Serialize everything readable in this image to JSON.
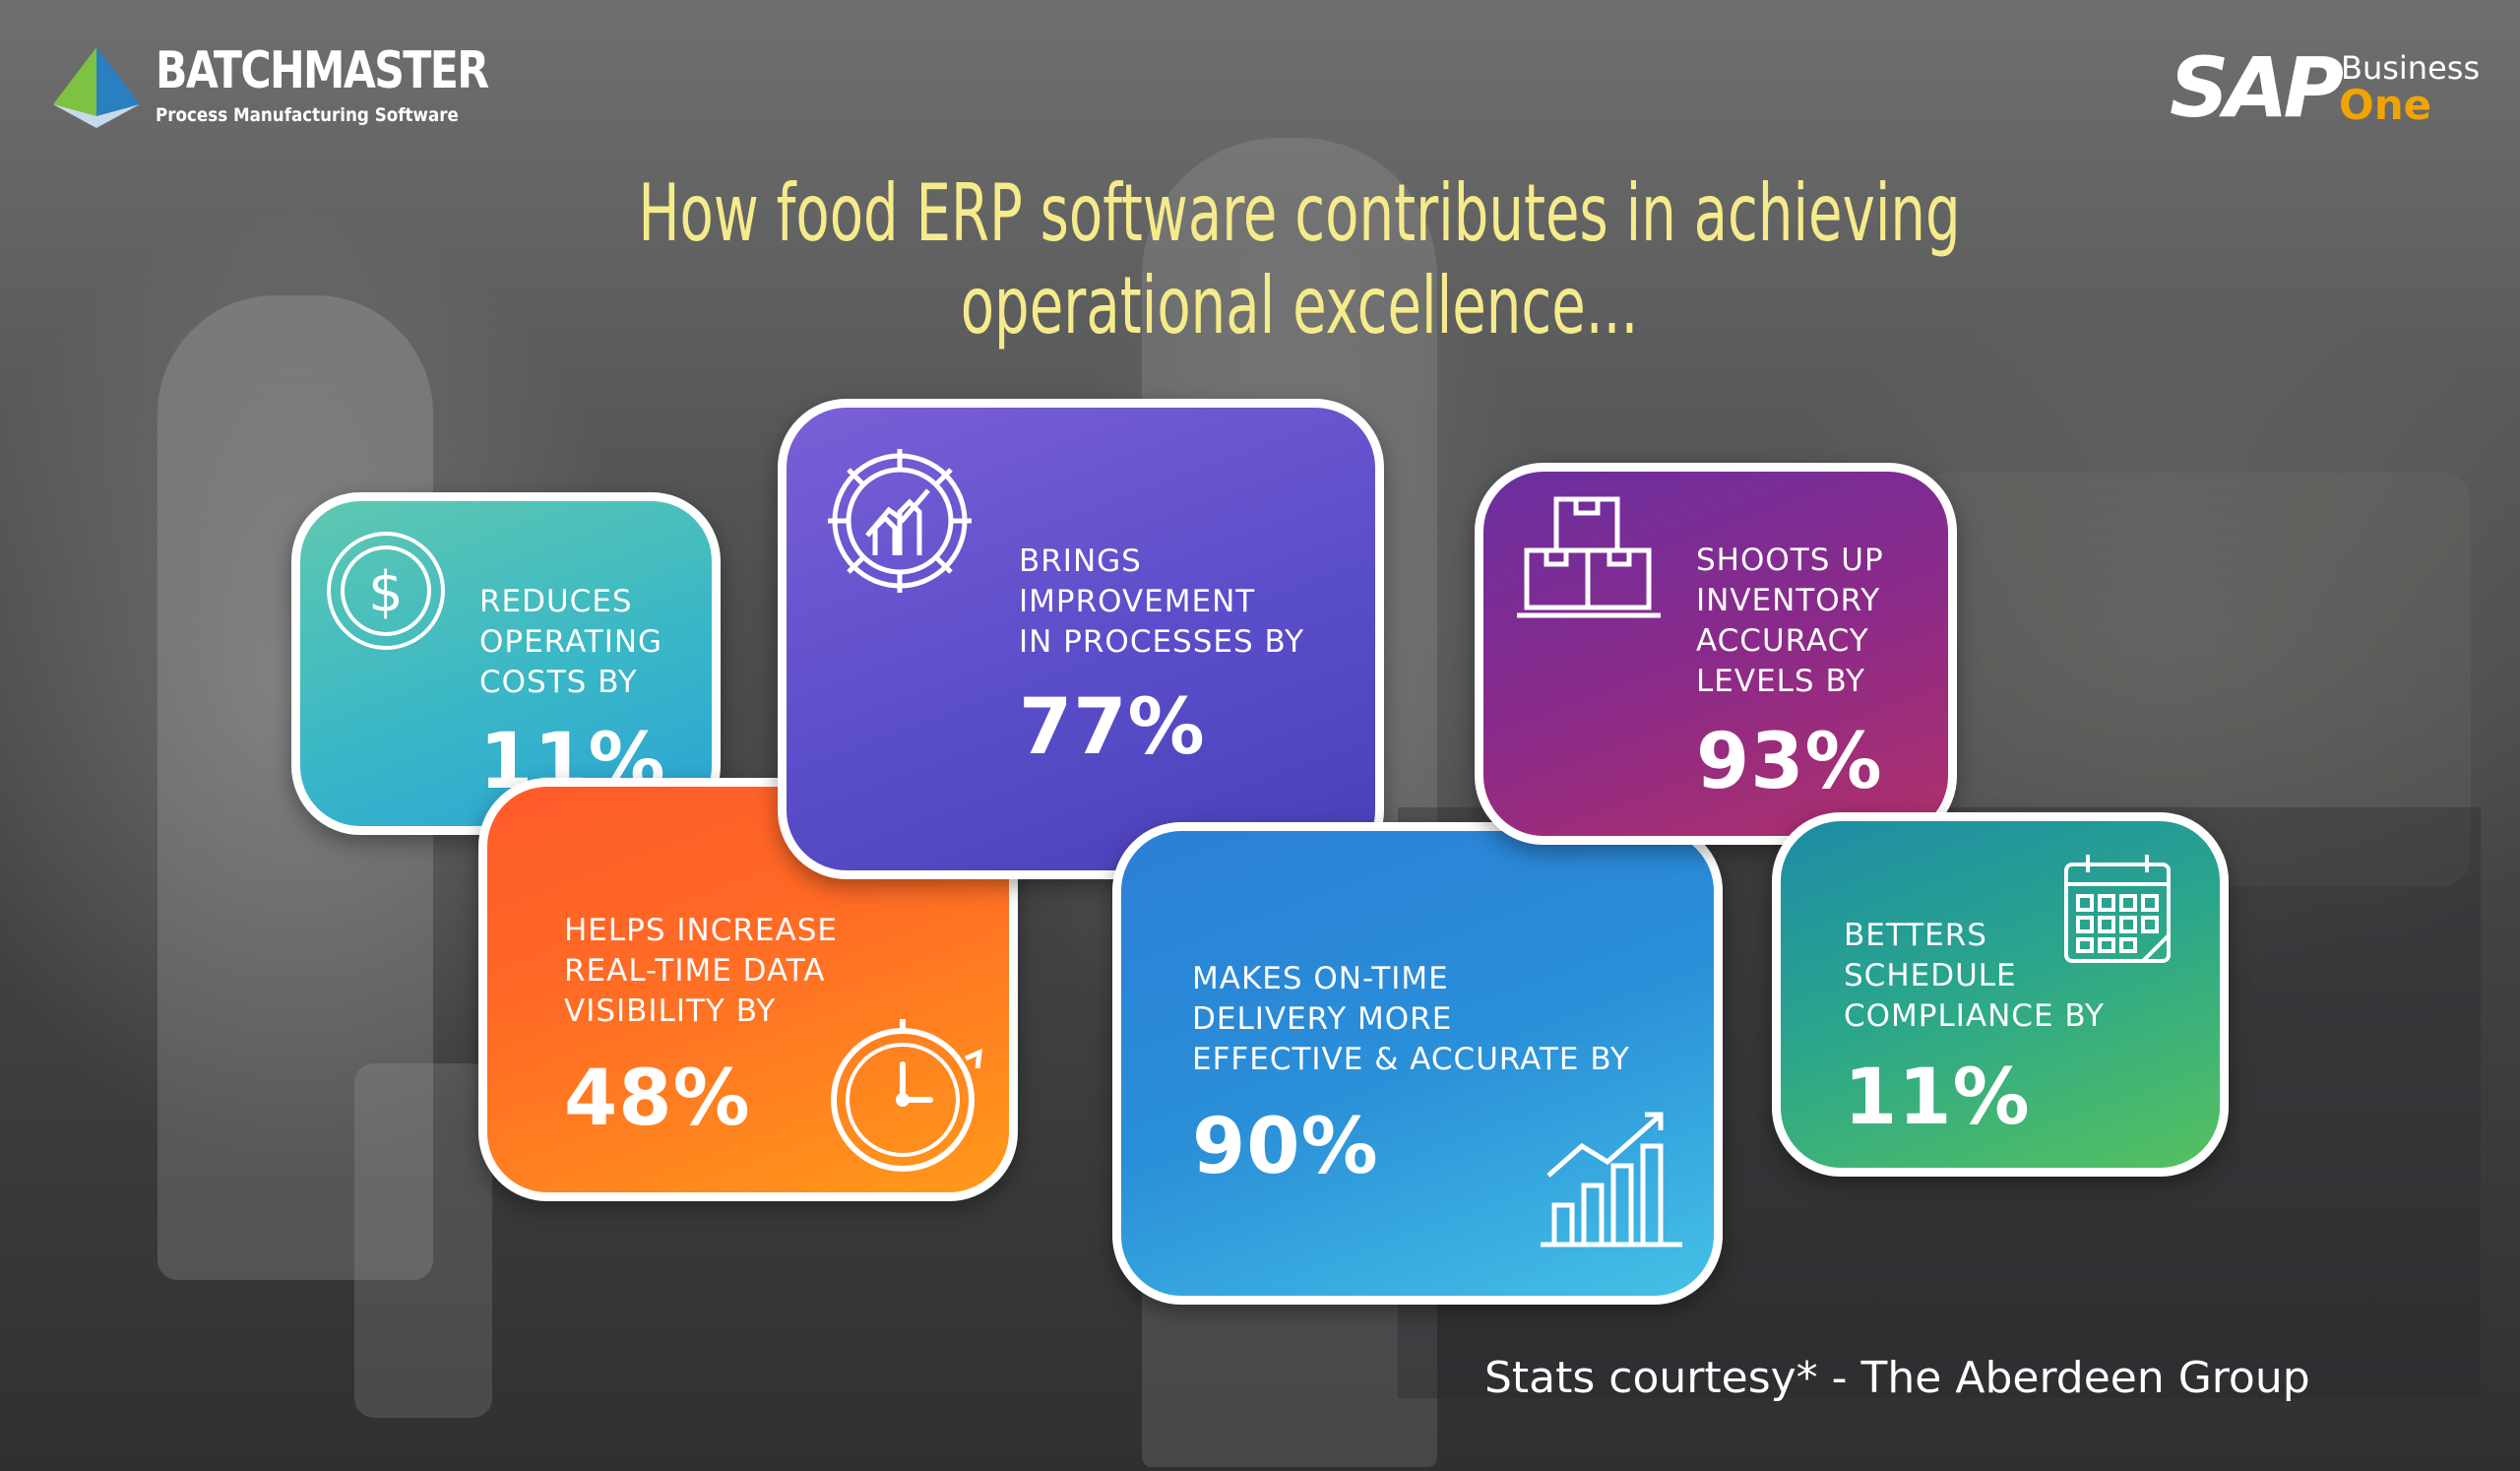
{
  "header": {
    "brand_left": {
      "name": "BATCHMASTER",
      "tagline": "Process Manufacturing Software",
      "icon": "pyramid-logo-icon"
    },
    "brand_right": {
      "name": "SAP",
      "line1": "Business",
      "line2": "One"
    },
    "title_line1": "How food ERP software contributes in achieving",
    "title_line2": "operational excellence..."
  },
  "cards": [
    {
      "label": [
        "REDUCES",
        "OPERATING",
        "COSTS BY"
      ],
      "value": "11%",
      "icon": "dollar-coin-icon",
      "color": "#3ab7c6"
    },
    {
      "label": [
        "BRINGS",
        "IMPROVEMENT",
        "IN PROCESSES BY"
      ],
      "value": "77%",
      "icon": "gear-growth-icon",
      "color": "#5a4dc9"
    },
    {
      "label": [
        "SHOOTS UP",
        "INVENTORY",
        "ACCURACY",
        "LEVELS BY"
      ],
      "value": "93%",
      "icon": "boxes-icon",
      "color": "#8a2a8a"
    },
    {
      "label": [
        "HELPS INCREASE",
        "REAL-TIME DATA",
        "VISIBILITY BY"
      ],
      "value": "48%",
      "icon": "stopwatch-icon",
      "color": "#ff6a25"
    },
    {
      "label": [
        "MAKES ON-TIME",
        "DELIVERY MORE",
        "EFFECTIVE & ACCURATE BY"
      ],
      "value": "90%",
      "icon": "bar-chart-icon",
      "color": "#2a8fd8"
    },
    {
      "label": [
        "BETTERS",
        "SCHEDULE",
        "COMPLIANCE BY"
      ],
      "value": "11%",
      "icon": "calendar-icon",
      "color": "#2aa58c"
    }
  ],
  "footer": {
    "credit": "Stats courtesy* - The Aberdeen Group"
  }
}
